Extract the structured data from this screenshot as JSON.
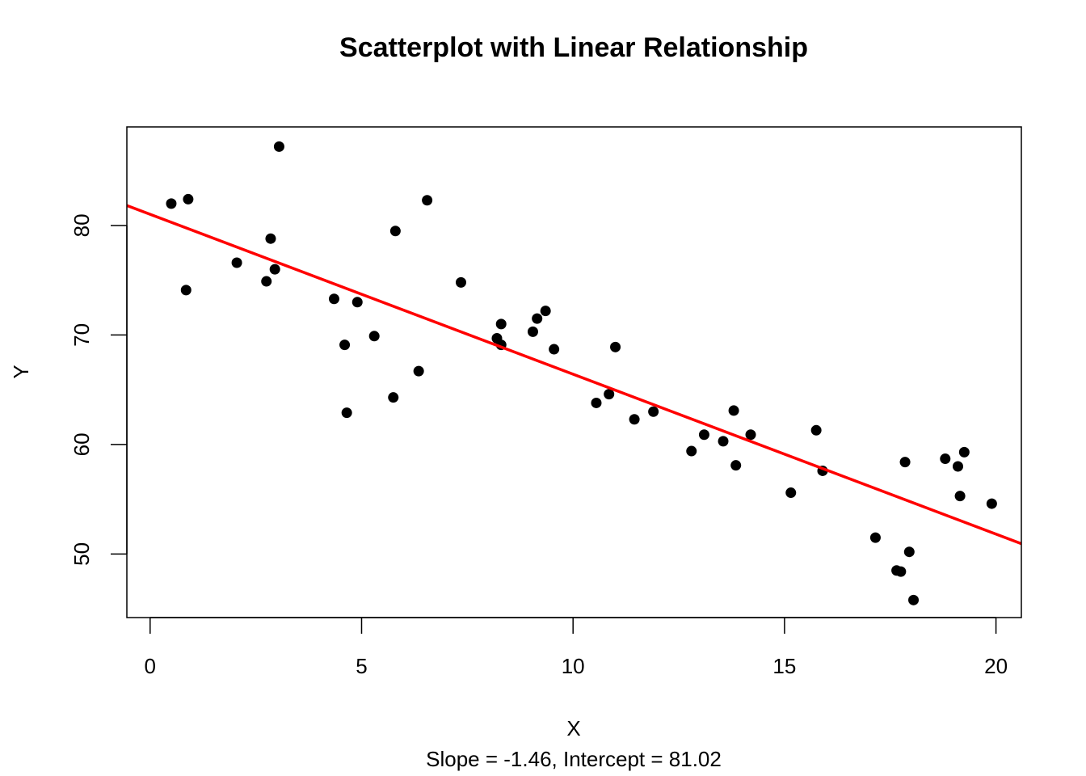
{
  "chart_data": {
    "type": "scatter",
    "title": "Scatterplot with Linear Relationship",
    "xlabel": "X",
    "ylabel": "Y",
    "subtitle": "Slope = -1.46, Intercept = 81.02",
    "xlim": [
      -0.55,
      20.6
    ],
    "ylim": [
      44.2,
      89
    ],
    "x_ticks": [
      0,
      5,
      10,
      15,
      20
    ],
    "y_ticks": [
      50,
      60,
      70,
      80
    ],
    "grid": false,
    "point_color": "#000000",
    "line_color": "#ff0000",
    "regression": {
      "slope": -1.46,
      "intercept": 81.02
    },
    "points": [
      {
        "x": 0.5,
        "y": 82.0
      },
      {
        "x": 0.9,
        "y": 82.4
      },
      {
        "x": 0.85,
        "y": 74.1
      },
      {
        "x": 2.05,
        "y": 76.6
      },
      {
        "x": 2.75,
        "y": 74.9
      },
      {
        "x": 2.85,
        "y": 78.8
      },
      {
        "x": 2.95,
        "y": 76.0
      },
      {
        "x": 3.05,
        "y": 87.2
      },
      {
        "x": 4.35,
        "y": 73.3
      },
      {
        "x": 4.6,
        "y": 69.1
      },
      {
        "x": 4.65,
        "y": 62.9
      },
      {
        "x": 4.9,
        "y": 73.0
      },
      {
        "x": 5.3,
        "y": 69.9
      },
      {
        "x": 5.75,
        "y": 64.3
      },
      {
        "x": 5.8,
        "y": 79.5
      },
      {
        "x": 6.35,
        "y": 66.7
      },
      {
        "x": 6.55,
        "y": 82.3
      },
      {
        "x": 7.35,
        "y": 74.8
      },
      {
        "x": 8.2,
        "y": 69.7
      },
      {
        "x": 8.3,
        "y": 71.0
      },
      {
        "x": 8.3,
        "y": 69.1
      },
      {
        "x": 9.05,
        "y": 70.3
      },
      {
        "x": 9.15,
        "y": 71.5
      },
      {
        "x": 9.35,
        "y": 72.2
      },
      {
        "x": 9.55,
        "y": 68.7
      },
      {
        "x": 10.55,
        "y": 63.8
      },
      {
        "x": 10.85,
        "y": 64.6
      },
      {
        "x": 11.0,
        "y": 68.9
      },
      {
        "x": 11.45,
        "y": 62.3
      },
      {
        "x": 11.9,
        "y": 63.0
      },
      {
        "x": 12.8,
        "y": 59.4
      },
      {
        "x": 13.1,
        "y": 60.9
      },
      {
        "x": 13.55,
        "y": 60.3
      },
      {
        "x": 13.8,
        "y": 63.1
      },
      {
        "x": 13.85,
        "y": 58.1
      },
      {
        "x": 14.2,
        "y": 60.9
      },
      {
        "x": 15.15,
        "y": 55.6
      },
      {
        "x": 15.75,
        "y": 61.3
      },
      {
        "x": 15.9,
        "y": 57.6
      },
      {
        "x": 17.15,
        "y": 51.5
      },
      {
        "x": 17.65,
        "y": 48.5
      },
      {
        "x": 17.75,
        "y": 48.4
      },
      {
        "x": 17.85,
        "y": 58.4
      },
      {
        "x": 17.95,
        "y": 50.2
      },
      {
        "x": 18.05,
        "y": 45.8
      },
      {
        "x": 18.8,
        "y": 58.7
      },
      {
        "x": 19.1,
        "y": 58.0
      },
      {
        "x": 19.15,
        "y": 55.3
      },
      {
        "x": 19.25,
        "y": 59.3
      },
      {
        "x": 19.9,
        "y": 54.6
      }
    ]
  }
}
